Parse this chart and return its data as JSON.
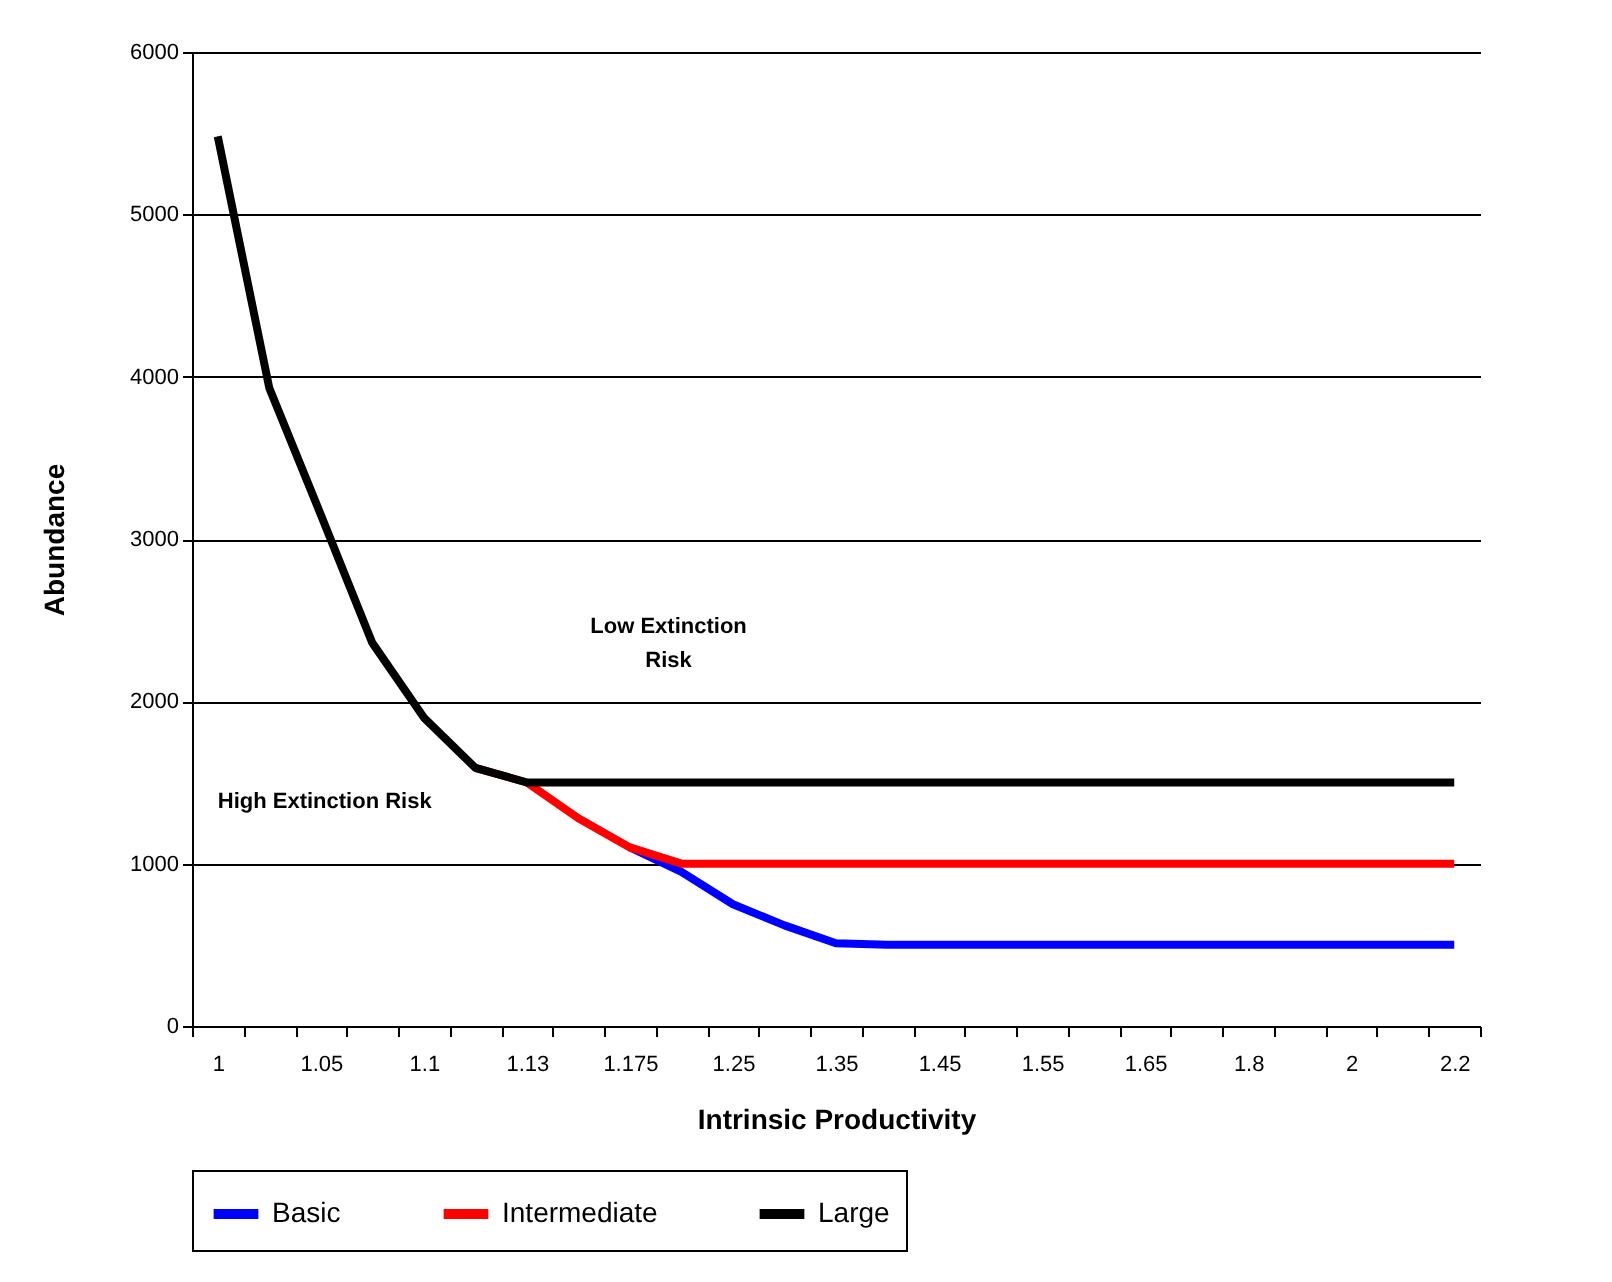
{
  "chart_data": {
    "type": "line",
    "xlabel": "Intrinsic Productivity",
    "ylabel": "Abundance",
    "categories": [
      "1",
      null,
      "1.05",
      null,
      "1.1",
      null,
      "1.13",
      null,
      "1.175",
      null,
      "1.25",
      null,
      "1.35",
      null,
      "1.45",
      null,
      "1.55",
      null,
      "1.65",
      null,
      "1.8",
      null,
      "2",
      null,
      "2.2"
    ],
    "series": [
      {
        "name": "Basic",
        "color": "#0000ff",
        "values": [
          null,
          null,
          null,
          null,
          null,
          null,
          null,
          null,
          1100,
          950,
          750,
          620,
          510,
          500,
          500,
          500,
          500,
          500,
          500,
          500,
          500,
          500,
          500,
          500,
          500
        ]
      },
      {
        "name": "Intermediate",
        "color": "#ff0000",
        "values": [
          null,
          null,
          null,
          null,
          null,
          1590,
          1500,
          1280,
          1100,
          1000,
          1000,
          1000,
          1000,
          1000,
          1000,
          1000,
          1000,
          1000,
          1000,
          1000,
          1000,
          1000,
          1000,
          1000,
          1000
        ]
      },
      {
        "name": "Large",
        "color": "#000000",
        "values": [
          5480,
          3930,
          3150,
          2360,
          1900,
          1590,
          1500,
          1500,
          1500,
          1500,
          1500,
          1500,
          1500,
          1500,
          1500,
          1500,
          1500,
          1500,
          1500,
          1500,
          1500,
          1500,
          1500,
          1500,
          1500
        ]
      }
    ],
    "ylim": [
      0,
      6000
    ],
    "yticks": [
      0,
      1000,
      2000,
      3000,
      4000,
      5000,
      6000
    ],
    "grid": "y",
    "legend": "bottom",
    "marker": "none",
    "line_style": "solid",
    "annotations": [
      "Low Extinction Risk",
      "High Extinction Risk"
    ]
  }
}
